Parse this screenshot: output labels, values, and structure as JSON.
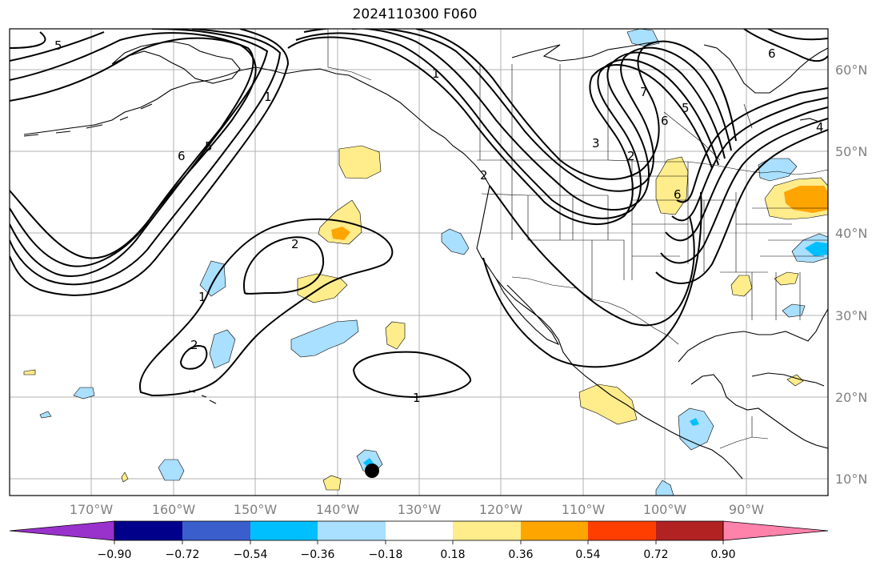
{
  "title": "2024110300 F060",
  "map": {
    "region": "North Pacific and North America",
    "lat_labels": [
      "60°N",
      "50°N",
      "40°N",
      "30°N",
      "20°N",
      "10°N"
    ],
    "lon_labels": [
      "170°W",
      "160°W",
      "150°W",
      "140°W",
      "130°W",
      "120°W",
      "110°W",
      "100°W",
      "90°W"
    ],
    "contour_labels": [
      "5",
      "1",
      "6",
      "5",
      "1",
      "6",
      "7",
      "6",
      "5",
      "4",
      "3",
      "2",
      "2",
      "1",
      "2",
      "1",
      "6",
      "2"
    ],
    "marker": "black-dot"
  },
  "colorbar": {
    "colors": [
      "#9932cc",
      "#00008b",
      "#3a5fcd",
      "#00bfff",
      "#a9dfff",
      "#ffffff",
      "#ffec8b",
      "#ffa500",
      "#ff3e00",
      "#b22222",
      "#ff82ab"
    ],
    "tick_labels": [
      "−0.90",
      "−0.72",
      "−0.54",
      "−0.36",
      "−0.18",
      "0.18",
      "0.36",
      "0.54",
      "0.72",
      "0.90"
    ]
  },
  "fill_colors": {
    "light_blue": "#a9dfff",
    "blue": "#00bfff",
    "yellow": "#ffec8b",
    "orange": "#ffa500"
  }
}
